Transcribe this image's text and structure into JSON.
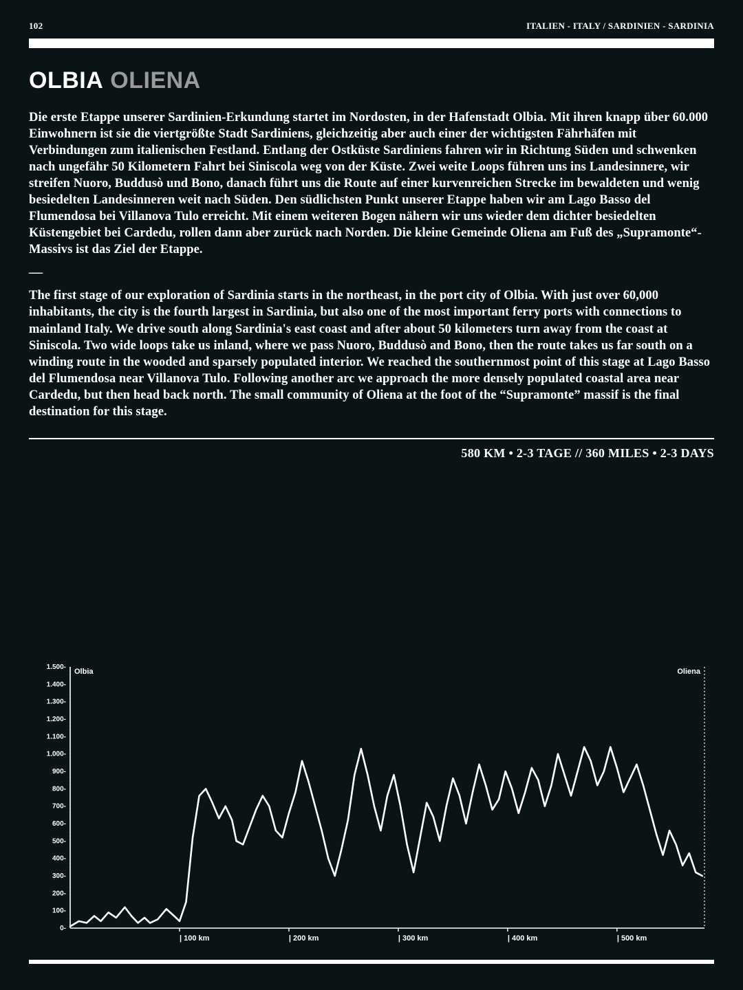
{
  "header": {
    "page_number": "102",
    "breadcrumb": "ITALIEN - ITALY / SARDINIEN - SARDINIA"
  },
  "title": {
    "origin": "OLBIA",
    "destination": "OLIENA"
  },
  "paragraph_de": "Die erste Etappe unserer Sardinien-Erkundung startet im Nordosten, in der Hafenstadt Olbia. Mit ihren knapp über 60.000 Einwohnern ist sie die viertgrößte Stadt Sardiniens, gleichzeitig aber auch einer der wichtigsten Fährhäfen mit Verbindungen zum italienischen Festland. Entlang der Ostküste Sardiniens fahren wir in Richtung Süden und schwenken nach ungefähr 50 Kilometern Fahrt bei Siniscola weg von der Küste. Zwei weite Loops führen uns ins Landesinnere, wir streifen Nuoro, Buddusò und Bono, danach führt uns die Route auf einer kurvenreichen Strecke im bewaldeten und wenig besiedelten Landesinneren weit nach Süden. Den südlichsten Punkt unserer Etappe haben wir am Lago Basso del Flumendosa bei Villanova Tulo erreicht. Mit einem weiteren Bogen nähern wir uns wieder dem dichter besiedelten Küstengebiet bei Cardedu, rollen dann aber zurück nach Norden. Die kleine Gemeinde Oliena am Fuß des „Supramonte“-Massivs ist das Ziel der Etappe.",
  "paragraph_en": "The first stage of our exploration of Sardinia starts in the northeast, in the port city of Olbia. With just over 60,000 inhabitants, the city is the fourth largest in Sardinia, but also one of the most important ferry ports with connections to mainland Italy. We drive south along Sardinia's east coast and after about 50 kilometers turn away from the coast at Siniscola. Two wide loops take us inland, where we pass Nuoro, Buddusò and Bono, then the route takes us far south on a winding route in the wooded and sparsely populated interior. We reached the southernmost point of this stage at Lago Basso del Flumendosa near Villanova Tulo. Following another arc we approach the more densely populated coastal area near Cardedu, but then head back north. The small community of Oliena at the foot of the “Supramonte” massif is the final destination for this stage.",
  "stats_line": "580 KM  •  2-3 TAGE // 360 MILES  •  2-3 DAYS",
  "elevation_chart": {
    "type": "line",
    "start_label": "Olbia",
    "end_label": "Oliena",
    "x_max_km": 580,
    "y_max_m": 1500,
    "y_ticks": [
      0,
      100,
      200,
      300,
      400,
      500,
      600,
      700,
      800,
      900,
      1000,
      1100,
      1200,
      1300,
      1400,
      1500
    ],
    "x_ticks_km": [
      100,
      200,
      300,
      400,
      500
    ],
    "line_color": "#ffffff",
    "line_width": 2.6,
    "axis_color": "#ffffff",
    "background_color": "#0a1416",
    "profile": [
      [
        0,
        10
      ],
      [
        8,
        40
      ],
      [
        15,
        30
      ],
      [
        22,
        70
      ],
      [
        28,
        40
      ],
      [
        35,
        90
      ],
      [
        42,
        60
      ],
      [
        50,
        120
      ],
      [
        56,
        70
      ],
      [
        62,
        30
      ],
      [
        68,
        60
      ],
      [
        73,
        30
      ],
      [
        80,
        50
      ],
      [
        88,
        110
      ],
      [
        95,
        70
      ],
      [
        100,
        40
      ],
      [
        106,
        150
      ],
      [
        112,
        520
      ],
      [
        118,
        760
      ],
      [
        124,
        800
      ],
      [
        130,
        720
      ],
      [
        136,
        630
      ],
      [
        142,
        700
      ],
      [
        148,
        620
      ],
      [
        152,
        500
      ],
      [
        158,
        480
      ],
      [
        164,
        580
      ],
      [
        170,
        680
      ],
      [
        176,
        760
      ],
      [
        182,
        700
      ],
      [
        188,
        560
      ],
      [
        194,
        520
      ],
      [
        200,
        660
      ],
      [
        206,
        780
      ],
      [
        212,
        960
      ],
      [
        218,
        840
      ],
      [
        224,
        700
      ],
      [
        230,
        560
      ],
      [
        236,
        400
      ],
      [
        242,
        300
      ],
      [
        248,
        450
      ],
      [
        254,
        620
      ],
      [
        260,
        880
      ],
      [
        266,
        1030
      ],
      [
        272,
        880
      ],
      [
        278,
        700
      ],
      [
        284,
        560
      ],
      [
        290,
        760
      ],
      [
        296,
        880
      ],
      [
        302,
        700
      ],
      [
        308,
        480
      ],
      [
        314,
        320
      ],
      [
        320,
        520
      ],
      [
        326,
        720
      ],
      [
        332,
        640
      ],
      [
        338,
        500
      ],
      [
        344,
        700
      ],
      [
        350,
        860
      ],
      [
        356,
        760
      ],
      [
        362,
        600
      ],
      [
        368,
        780
      ],
      [
        374,
        940
      ],
      [
        380,
        820
      ],
      [
        386,
        680
      ],
      [
        392,
        740
      ],
      [
        398,
        900
      ],
      [
        404,
        800
      ],
      [
        410,
        660
      ],
      [
        416,
        780
      ],
      [
        422,
        920
      ],
      [
        428,
        850
      ],
      [
        434,
        700
      ],
      [
        440,
        820
      ],
      [
        446,
        1000
      ],
      [
        452,
        880
      ],
      [
        458,
        760
      ],
      [
        464,
        900
      ],
      [
        470,
        1040
      ],
      [
        476,
        960
      ],
      [
        482,
        820
      ],
      [
        488,
        900
      ],
      [
        494,
        1040
      ],
      [
        500,
        920
      ],
      [
        506,
        780
      ],
      [
        512,
        860
      ],
      [
        518,
        940
      ],
      [
        524,
        820
      ],
      [
        530,
        680
      ],
      [
        536,
        540
      ],
      [
        542,
        420
      ],
      [
        548,
        560
      ],
      [
        554,
        480
      ],
      [
        560,
        360
      ],
      [
        566,
        430
      ],
      [
        572,
        320
      ],
      [
        578,
        300
      ]
    ]
  }
}
